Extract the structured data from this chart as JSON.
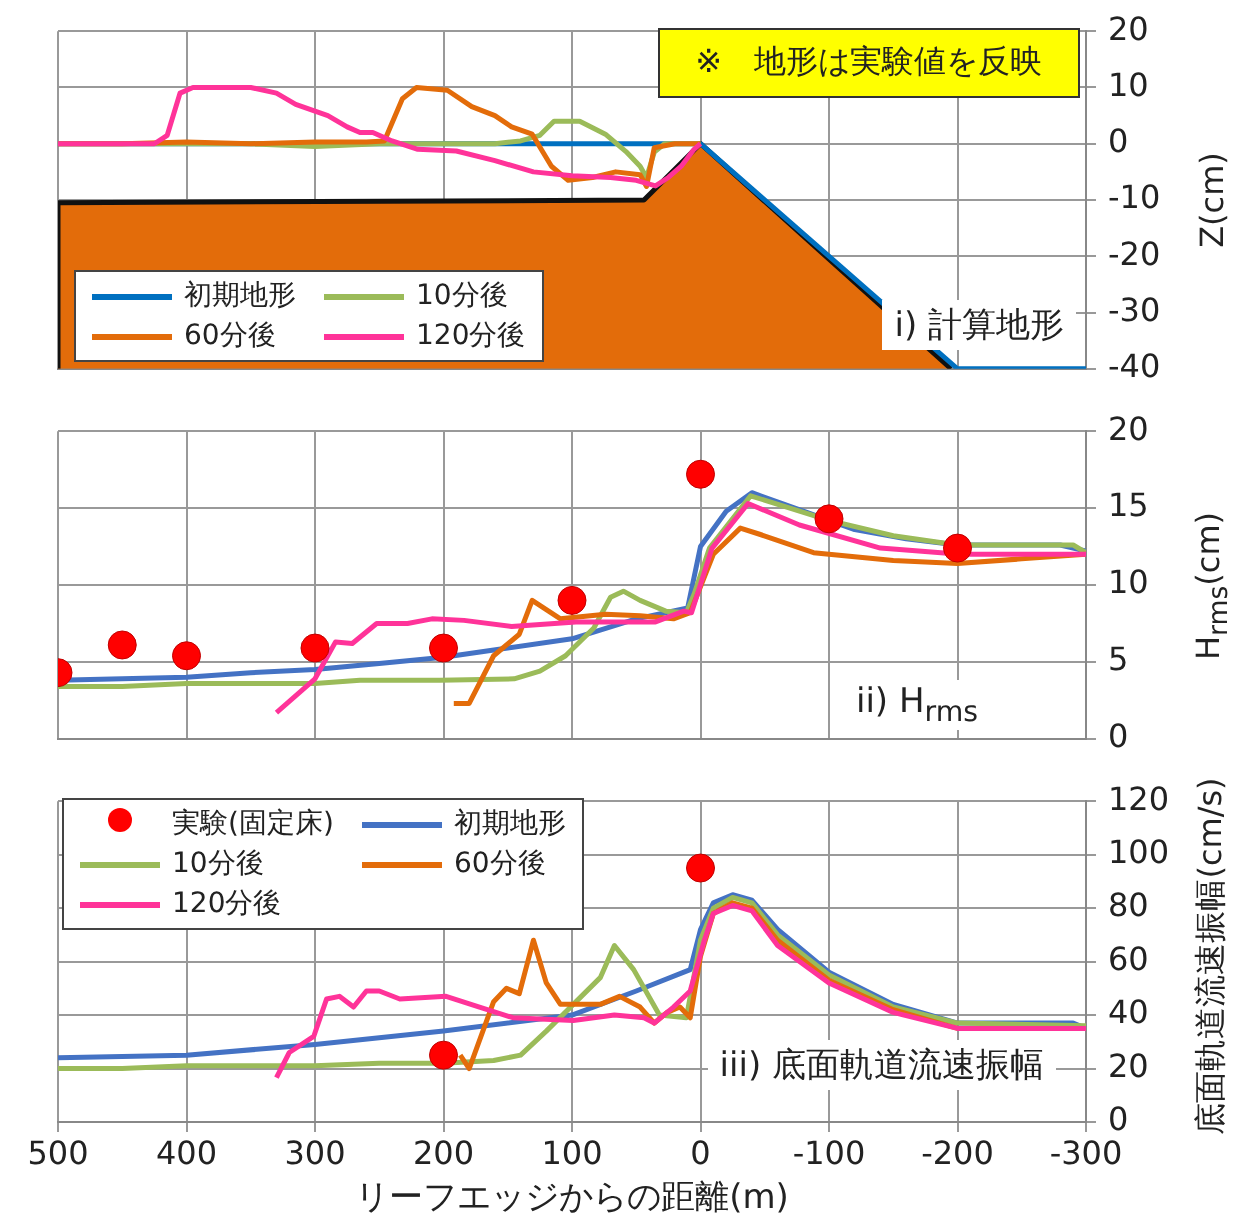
{
  "chart_data": [
    {
      "type": "line",
      "ylabel": "Z(cm)",
      "annotations": [
        "※　地形は実験値を反映",
        "i) 計算地形"
      ],
      "xlim": [
        500,
        -300
      ],
      "xticks": [
        500,
        400,
        300,
        200,
        100,
        0,
        -100,
        -200,
        -300
      ],
      "ylim": [
        -40,
        20
      ],
      "yticks": [
        -40,
        -30,
        -20,
        -10,
        0,
        10,
        20
      ],
      "grid": true,
      "legend": "bottom left",
      "tick_labels": "y",
      "series": [
        {
          "type": "area",
          "color": "#e36c0a",
          "x": [
            500,
            500,
            44,
            0,
            -195
          ],
          "values": [
            -40,
            -10.5,
            -10,
            0,
            -40
          ]
        },
        {
          "name": "初期地形",
          "color": "#0070c0",
          "x": [
            500,
            0,
            -200,
            -300
          ],
          "values": [
            0,
            0,
            -40,
            -40
          ]
        },
        {
          "name": "10分後",
          "color": "#9bbb59",
          "x": [
            500,
            450,
            400,
            350,
            300,
            250,
            200,
            160,
            140,
            125,
            114,
            94,
            74,
            58,
            47,
            42,
            36,
            28,
            0
          ],
          "values": [
            0,
            0,
            0,
            0,
            -0.5,
            0,
            0,
            0,
            0.5,
            1.5,
            4,
            4,
            1.7,
            -1.4,
            -4,
            -6,
            -1.5,
            0,
            0
          ]
        },
        {
          "name": "60分後",
          "color": "#e36c0a",
          "x": [
            500,
            450,
            400,
            350,
            300,
            260,
            246,
            232,
            221,
            197,
            178,
            160,
            147,
            131,
            116,
            103,
            84,
            66,
            47,
            42,
            36,
            20,
            5,
            0
          ],
          "values": [
            0,
            0,
            0.3,
            0,
            0.3,
            0.3,
            0.5,
            8,
            10,
            9.5,
            6.6,
            5,
            3,
            1.7,
            -4,
            -6.5,
            -6,
            -5,
            -5.5,
            -7.6,
            -0.7,
            0,
            0,
            0
          ]
        },
        {
          "name": "120分後",
          "color": "#ff3399",
          "x": [
            500,
            425,
            415,
            405,
            395,
            350,
            330,
            315,
            290,
            275,
            265,
            255,
            240,
            220,
            190,
            160,
            130,
            100,
            70,
            50,
            35,
            25,
            15,
            5,
            0
          ],
          "values": [
            0,
            0,
            1.5,
            9,
            10,
            10,
            9,
            7,
            5,
            3,
            2,
            2,
            0.5,
            -1,
            -1.3,
            -3,
            -5,
            -5.7,
            -6,
            -6.5,
            -7.5,
            -6,
            -4,
            -1,
            0
          ]
        }
      ]
    },
    {
      "type": "line",
      "ylabel": "H$_{rms}$(cm)",
      "annotations": [
        "ii) H$_{rms}$"
      ],
      "xlim": [
        500,
        -300
      ],
      "xticks": [
        500,
        400,
        300,
        200,
        100,
        0,
        -100,
        -200,
        -300
      ],
      "ylim": [
        0,
        20
      ],
      "yticks": [
        0,
        5,
        10,
        15,
        20
      ],
      "grid": true,
      "tick_labels": "y",
      "series": [
        {
          "type": "scatter",
          "marker": "circle",
          "color": "#ff0000",
          "x": [
            500,
            450,
            400,
            300,
            200,
            100,
            0,
            -100,
            -200
          ],
          "values": [
            4.3,
            6.1,
            5.4,
            5.9,
            5.9,
            9.0,
            17.2,
            14.3,
            12.4
          ]
        },
        {
          "color": "#4472c4",
          "x": [
            500,
            450,
            400,
            350,
            300,
            250,
            200,
            150,
            100,
            50,
            10,
            0,
            -20,
            -40,
            -80,
            -120,
            -160,
            -200,
            -280,
            -300
          ],
          "values": [
            3.8,
            3.9,
            4.0,
            4.3,
            4.5,
            4.9,
            5.3,
            5.9,
            6.5,
            7.8,
            8.5,
            12.5,
            14.8,
            16,
            14.8,
            13.6,
            13,
            12.6,
            12.6,
            12.2
          ]
        },
        {
          "color": "#9bbb59",
          "x": [
            500,
            450,
            400,
            300,
            265,
            203,
            145,
            125,
            105,
            83,
            70,
            60,
            47,
            27,
            11,
            5,
            -7,
            -39,
            -100,
            -150,
            -200,
            -290,
            -300
          ],
          "values": [
            3.4,
            3.4,
            3.6,
            3.6,
            3.8,
            3.8,
            3.9,
            4.4,
            5.4,
            7.2,
            9.2,
            9.6,
            9.0,
            8.3,
            8.2,
            9.4,
            12.4,
            15.8,
            14.2,
            13.2,
            12.6,
            12.6,
            12.1
          ]
        },
        {
          "color": "#e36c0a",
          "x": [
            192,
            180,
            161,
            141,
            131,
            109,
            74,
            47,
            21,
            8,
            -10,
            -31,
            -46,
            -88,
            -150,
            -200,
            -250,
            -300
          ],
          "values": [
            2.3,
            2.3,
            5.4,
            6.8,
            9.0,
            7.8,
            8.1,
            8.0,
            7.8,
            8.2,
            12,
            13.7,
            13.3,
            12.1,
            11.6,
            11.4,
            11.7,
            12.0
          ]
        },
        {
          "color": "#ff3399",
          "x": [
            330,
            300,
            284,
            271,
            252,
            228,
            209,
            184,
            147,
            97,
            35,
            13,
            7,
            -9,
            -37,
            -77,
            -140,
            -202,
            -300
          ],
          "values": [
            1.7,
            3.9,
            6.3,
            6.2,
            7.5,
            7.5,
            7.8,
            7.7,
            7.3,
            7.6,
            7.6,
            8.3,
            8.2,
            12.4,
            15.3,
            13.9,
            12.4,
            12.0,
            12.0
          ]
        }
      ]
    },
    {
      "type": "line",
      "xlabel": "リーフエッジからの距離(m)",
      "ylabel": "底面軌道流速振幅(cm/s)",
      "annotations": [
        "iii) 底面軌道流速振幅"
      ],
      "xlim": [
        500,
        -300
      ],
      "xticks": [
        500,
        400,
        300,
        200,
        100,
        0,
        -100,
        -200,
        -300
      ],
      "ylim": [
        0,
        120
      ],
      "yticks": [
        0,
        20,
        40,
        60,
        80,
        100,
        120
      ],
      "grid": true,
      "legend": "top left",
      "series": [
        {
          "type": "scatter",
          "marker": "circle",
          "name": "実験(固定床)",
          "color": "#ff0000",
          "x": [
            200,
            0
          ],
          "values": [
            25,
            95
          ]
        },
        {
          "name": "初期地形",
          "color": "#4472c4",
          "x": [
            500,
            400,
            300,
            200,
            100,
            50,
            8,
            0,
            -10,
            -25,
            -40,
            -60,
            -100,
            -150,
            -200,
            -290,
            -300
          ],
          "values": [
            24,
            25,
            29,
            34,
            40,
            49,
            57,
            72,
            82,
            85,
            83,
            72,
            56,
            44,
            37,
            37,
            35
          ]
        },
        {
          "name": "10分後",
          "color": "#9bbb59",
          "x": [
            500,
            450,
            400,
            300,
            250,
            200,
            161,
            140,
            120,
            99,
            78,
            67,
            52,
            32,
            11,
            0,
            -10,
            -25,
            -40,
            -60,
            -100,
            -150,
            -200,
            -300
          ],
          "values": [
            20,
            20,
            21,
            21,
            22,
            22,
            23,
            25,
            34,
            44,
            54,
            66,
            57,
            40,
            39,
            68,
            80,
            84,
            82,
            70,
            55,
            43,
            37,
            36
          ]
        },
        {
          "name": "60分後",
          "color": "#e36c0a",
          "x": [
            187,
            180,
            161,
            151,
            141,
            130,
            120,
            109,
            78,
            63,
            47,
            36,
            26,
            16,
            8,
            0,
            -10,
            -25,
            -40,
            -60,
            -100,
            -150,
            -200,
            -300
          ],
          "values": [
            25,
            20,
            45,
            50,
            48,
            68,
            52,
            44,
            44,
            47,
            43,
            37,
            41,
            43,
            39,
            62,
            78,
            82,
            80,
            68,
            53,
            42,
            35,
            35
          ]
        },
        {
          "name": "120分後",
          "color": "#ff3399",
          "x": [
            330,
            320,
            301,
            291,
            281,
            270,
            260,
            250,
            234,
            198,
            172,
            146,
            99,
            67,
            44,
            36,
            21,
            8,
            -3,
            -10,
            -25,
            -40,
            -60,
            -100,
            -150,
            -200,
            -300
          ],
          "values": [
            16.6,
            26,
            32,
            46,
            47,
            43,
            49,
            49,
            46,
            47,
            43,
            39,
            38,
            40,
            39,
            37,
            43,
            49,
            68,
            78,
            81,
            79,
            66,
            52,
            41,
            35,
            35
          ]
        }
      ]
    }
  ]
}
